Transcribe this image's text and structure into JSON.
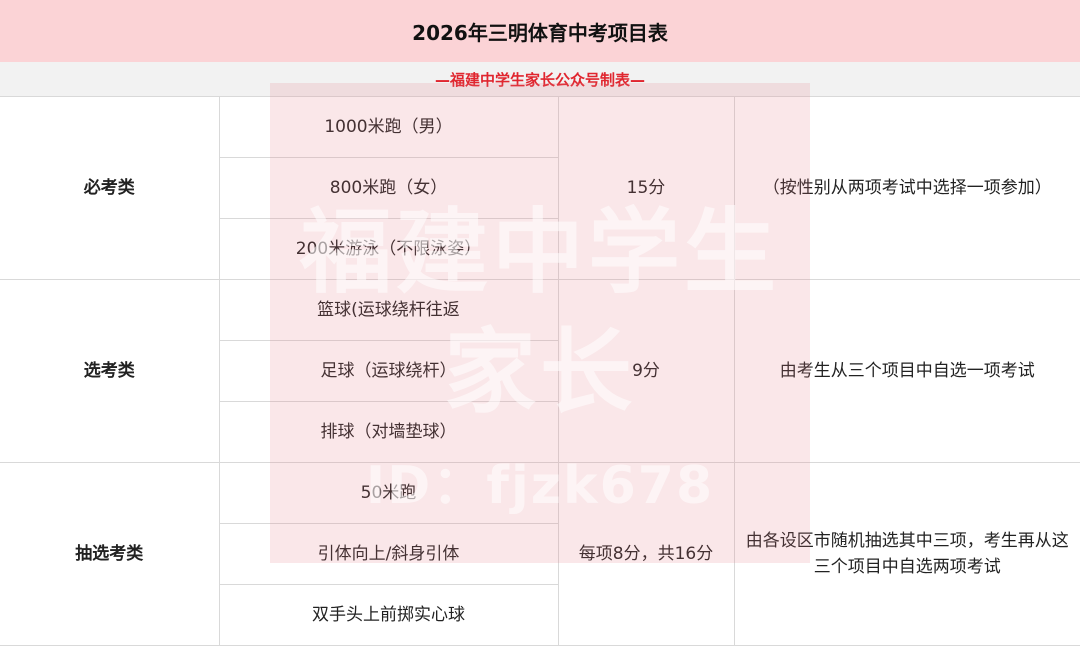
{
  "title": "2026年三明体育中考项目表",
  "subtitle": "—福建中学生家长公众号制表—",
  "watermark": {
    "line1": "福建中学生",
    "line2": "家长",
    "line3": "ID：fjzk678"
  },
  "groups": [
    {
      "category": "必考类",
      "items": [
        "1000米跑（男）",
        "800米跑（女）",
        "200米游泳（不限泳姿）"
      ],
      "score": "15分",
      "note": "（按性别从两项考试中选择一项参加）"
    },
    {
      "category": "选考类",
      "items": [
        "篮球(运球绕杆往返",
        "足球（运球绕杆）",
        "排球（对墙垫球）"
      ],
      "score": "9分",
      "note": "由考生从三个项目中自选一项考试"
    },
    {
      "category": "抽选考类",
      "items": [
        "50米跑",
        "引体向上/斜身引体",
        "双手头上前掷实心球"
      ],
      "score": "每项8分，共16分",
      "note": "由各设区市随机抽选其中三项，考生再从这三个项目中自选两项考试"
    }
  ]
}
